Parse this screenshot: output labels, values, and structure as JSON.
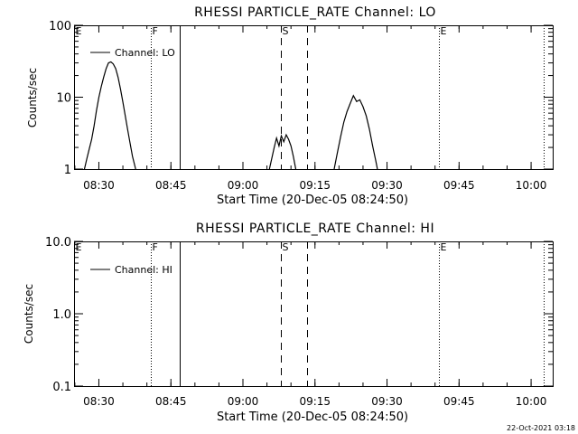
{
  "footer": {
    "timestamp": "22-Oct-2021 03:18"
  },
  "chart_data": [
    {
      "type": "line",
      "title": "RHESSI PARTICLE_RATE Channel: LO",
      "xlabel": "Start Time (20-Dec-05 08:24:50)",
      "ylabel": "Counts/sec",
      "yscale": "log",
      "ylim": [
        1,
        100
      ],
      "xlim": [
        "08:24:50",
        "10:04:30"
      ],
      "x_ticks": [
        "08:30",
        "08:45",
        "09:00",
        "09:15",
        "09:30",
        "09:45",
        "10:00"
      ],
      "y_ticks": [
        "1",
        "10",
        "100"
      ],
      "legend": {
        "label": "Channel: LO",
        "placement": "top-left"
      },
      "series": [
        {
          "name": "Channel: LO",
          "segments": [
            [
              [
                "08:27:00",
                1
              ],
              [
                "08:27:30",
                1.4
              ],
              [
                "08:28:00",
                1.9
              ],
              [
                "08:28:30",
                2.6
              ],
              [
                "08:29:00",
                4
              ],
              [
                "08:29:30",
                6.5
              ],
              [
                "08:30:00",
                10
              ],
              [
                "08:30:30",
                14
              ],
              [
                "08:31:00",
                19
              ],
              [
                "08:31:30",
                25
              ],
              [
                "08:32:00",
                30
              ],
              [
                "08:32:30",
                31
              ],
              [
                "08:33:00",
                29
              ],
              [
                "08:33:30",
                25
              ],
              [
                "08:34:00",
                19
              ],
              [
                "08:34:30",
                13
              ],
              [
                "08:35:00",
                8.5
              ],
              [
                "08:35:30",
                5.5
              ],
              [
                "08:36:00",
                3.5
              ],
              [
                "08:36:30",
                2.3
              ],
              [
                "08:37:00",
                1.5
              ],
              [
                "08:37:40",
                1
              ]
            ],
            [
              [
                "09:05:30",
                1
              ],
              [
                "09:06:00",
                1.4
              ],
              [
                "09:06:30",
                2
              ],
              [
                "09:07:00",
                2.7
              ],
              [
                "09:07:30",
                2.1
              ],
              [
                "09:08:00",
                2.9
              ],
              [
                "09:08:30",
                2.4
              ],
              [
                "09:09:00",
                3
              ],
              [
                "09:09:30",
                2.6
              ],
              [
                "09:10:00",
                2.1
              ],
              [
                "09:10:30",
                1.5
              ],
              [
                "09:11:00",
                1
              ]
            ],
            [
              [
                "09:19:00",
                1
              ],
              [
                "09:19:40",
                1.7
              ],
              [
                "09:20:20",
                2.8
              ],
              [
                "09:21:00",
                4.5
              ],
              [
                "09:21:40",
                6.3
              ],
              [
                "09:22:20",
                8.2
              ],
              [
                "09:23:00",
                10.5
              ],
              [
                "09:23:40",
                8.7
              ],
              [
                "09:24:20",
                9.2
              ],
              [
                "09:25:00",
                7.4
              ],
              [
                "09:25:40",
                5.5
              ],
              [
                "09:26:20",
                3.6
              ],
              [
                "09:27:00",
                2.1
              ],
              [
                "09:27:40",
                1.3
              ],
              [
                "09:28:00",
                1
              ]
            ]
          ]
        }
      ]
    },
    {
      "type": "line",
      "title": "RHESSI PARTICLE_RATE Channel: HI",
      "xlabel": "Start Time (20-Dec-05 08:24:50)",
      "ylabel": "Counts/sec",
      "yscale": "log",
      "ylim": [
        0.1,
        10
      ],
      "xlim": [
        "08:24:50",
        "10:04:30"
      ],
      "x_ticks": [
        "08:30",
        "08:45",
        "09:00",
        "09:15",
        "09:30",
        "09:45",
        "10:00"
      ],
      "y_ticks": [
        "0.1",
        "1.0",
        "10.0"
      ],
      "legend": {
        "label": "Channel: HI",
        "placement": "top-left"
      },
      "series": [
        {
          "name": "Channel: HI",
          "segments": []
        }
      ]
    }
  ],
  "markers": [
    {
      "label": "E",
      "time": "08:24:50",
      "style": "dotted"
    },
    {
      "label": "F",
      "time": "08:40:50",
      "style": "dotted"
    },
    {
      "label": "",
      "time": "08:46:50",
      "style": "solid"
    },
    {
      "label": "S",
      "time": "09:07:50",
      "style": "dashed"
    },
    {
      "label": "",
      "time": "09:13:20",
      "style": "dashed"
    },
    {
      "label": "E",
      "time": "09:40:50",
      "style": "dotted"
    },
    {
      "label": "",
      "time": "10:02:40",
      "style": "dotted"
    }
  ]
}
